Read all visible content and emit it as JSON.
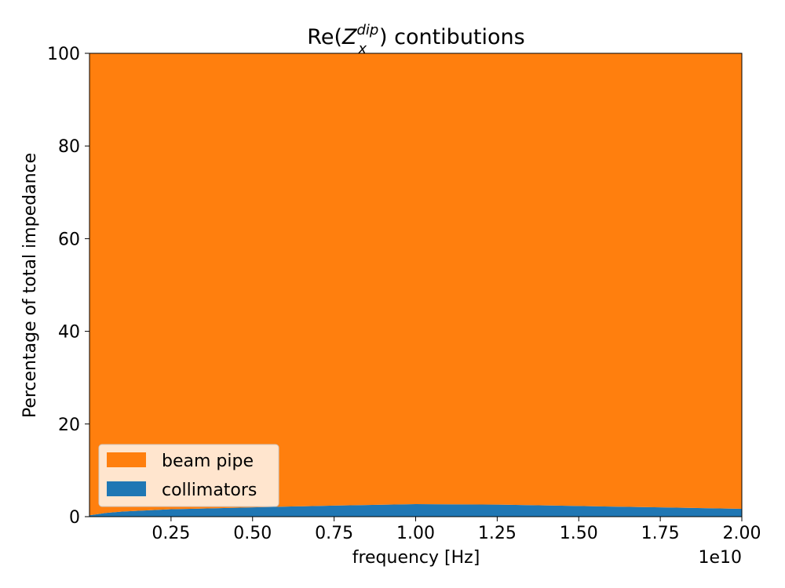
{
  "chart_data": {
    "type": "area",
    "stacked": true,
    "percent": true,
    "title_prefix": "Re(",
    "title_symbol": "Z",
    "title_sub": "x",
    "title_sup": "dip",
    "title_suffix": ") contibutions",
    "xlabel": "frequency [Hz]",
    "ylabel": "Percentage of total impedance",
    "x_offset_label": "1e10",
    "xlim": [
      0,
      2.0
    ],
    "ylim": [
      0,
      100
    ],
    "xticks": [
      0.25,
      0.5,
      0.75,
      1.0,
      1.25,
      1.5,
      1.75,
      2.0
    ],
    "xtick_labels": [
      "0.25",
      "0.50",
      "0.75",
      "1.00",
      "1.25",
      "1.50",
      "1.75",
      "2.00"
    ],
    "yticks": [
      0,
      20,
      40,
      60,
      80,
      100
    ],
    "ytick_labels": [
      "0",
      "20",
      "40",
      "60",
      "80",
      "100"
    ],
    "x": [
      0.0,
      0.05,
      0.1,
      0.25,
      0.5,
      0.75,
      1.0,
      1.25,
      1.5,
      1.75,
      2.0
    ],
    "series": [
      {
        "name": "collimators",
        "color": "#1f77b4",
        "values": [
          0.3,
          0.8,
          1.1,
          1.6,
          2.0,
          2.4,
          2.7,
          2.6,
          2.3,
          2.0,
          1.7
        ]
      },
      {
        "name": "beam pipe",
        "color": "#ff7f0e",
        "values": [
          99.7,
          99.2,
          98.9,
          98.4,
          98.0,
          97.6,
          97.3,
          97.4,
          97.7,
          98.0,
          98.3
        ]
      }
    ],
    "legend_position": "lower left",
    "legend_order": [
      "beam pipe",
      "collimators"
    ],
    "grid": false
  }
}
